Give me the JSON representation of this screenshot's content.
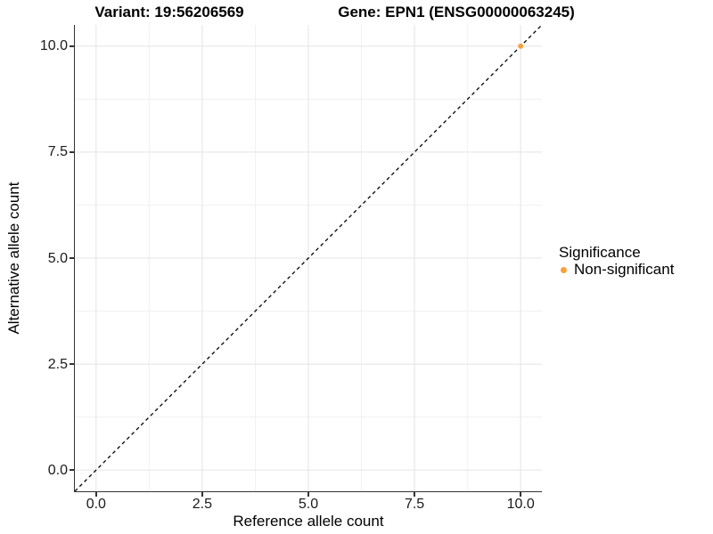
{
  "chart_data": {
    "type": "scatter",
    "title_variant": "Variant: 19:56206569",
    "title_gene": "Gene: EPN1 (ENSG00000063245)",
    "xlabel": "Reference allele count",
    "ylabel": "Alternative allele count",
    "xlim": [
      -0.5,
      10.5
    ],
    "ylim": [
      -0.5,
      10.5
    ],
    "x_ticks": [
      "0.0",
      "2.5",
      "5.0",
      "7.5",
      "10.0"
    ],
    "x_tick_values": [
      0,
      2.5,
      5,
      7.5,
      10
    ],
    "y_ticks": [
      "0.0",
      "2.5",
      "5.0",
      "7.5",
      "10.0"
    ],
    "y_tick_values": [
      0,
      2.5,
      5,
      7.5,
      10
    ],
    "minor_grid_values": [
      1.25,
      3.75,
      6.25,
      8.75
    ],
    "grid": "major+minor",
    "identity_line": {
      "slope": 1,
      "intercept": 0,
      "style": "dashed",
      "color": "#000000"
    },
    "series": [
      {
        "name": "Non-significant",
        "color": "#F9A03C",
        "points": [
          {
            "x": 10,
            "y": 10
          }
        ]
      }
    ],
    "legend": {
      "title": "Significance",
      "position": "right",
      "entries": [
        {
          "label": "Non-significant",
          "color": "#F9A03C"
        }
      ]
    }
  },
  "colors": {
    "background": "#FFFFFF",
    "axis_line": "#333333",
    "tick_label": "#1A1A1A",
    "grid_major": "#E4E4E4",
    "grid_minor": "#F1F1F1"
  }
}
